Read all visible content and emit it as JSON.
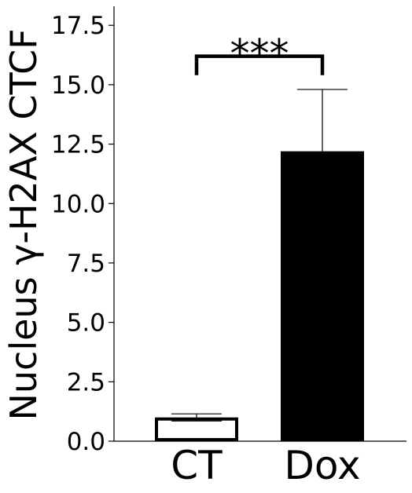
{
  "chart_data": {
    "type": "bar",
    "categories": [
      "CT",
      "Dox"
    ],
    "values": [
      1.0,
      12.2
    ],
    "errors": [
      0.15,
      2.6
    ],
    "fills": [
      "#ffffff",
      "#000000"
    ],
    "edge_color": "#000000",
    "ylabel": "Nucleus γ-H2AX CTCF",
    "ylim": [
      0,
      18.3
    ],
    "yticks": [
      0.0,
      2.5,
      5.0,
      7.5,
      10.0,
      12.5,
      15.0,
      17.5
    ],
    "ytick_labels": [
      "0.0",
      "2.5",
      "5.0",
      "7.5",
      "10.0",
      "12.5",
      "15.0",
      "17.5"
    ],
    "grid": false,
    "significance": {
      "label": "***",
      "between": [
        "CT",
        "Dox"
      ],
      "bracket_y": 16.2,
      "bracket_drop": 15.4
    }
  }
}
